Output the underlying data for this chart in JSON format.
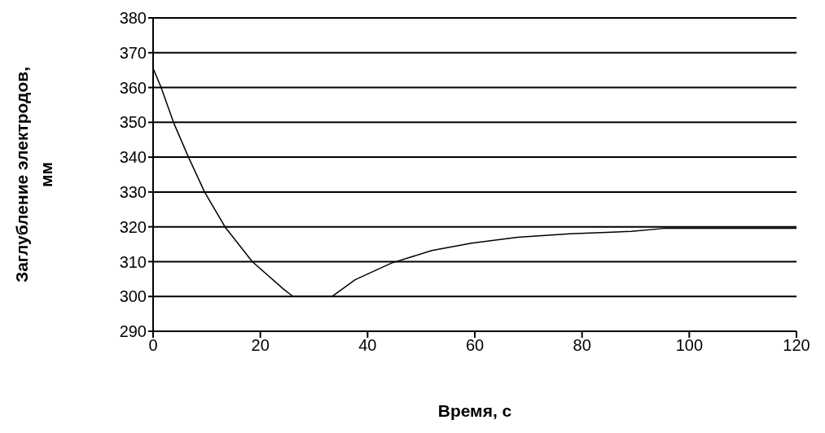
{
  "chart_data": {
    "type": "line",
    "xlabel": "Время, с",
    "ylabel": "Заглубление электродов, мм",
    "x": [
      0,
      1.5,
      3.8,
      6.6,
      9.6,
      13.4,
      18.5,
      24.4,
      26.1,
      33.4,
      37.7,
      44.5,
      52,
      59.4,
      68,
      77.7,
      89.2,
      95.7,
      120
    ],
    "series": [
      {
        "color": "#000000",
        "values": [
          365.5,
          360,
          350,
          340,
          330,
          320,
          310,
          302,
          300,
          300,
          304.8,
          309.6,
          313.2,
          315.3,
          317,
          318,
          318.7,
          319.6,
          319.6
        ]
      }
    ],
    "xlim": [
      0,
      120
    ],
    "xticks": [
      0,
      20,
      40,
      60,
      80,
      100,
      120
    ],
    "ylim": [
      290,
      380
    ],
    "yticks": [
      290,
      300,
      310,
      320,
      330,
      340,
      350,
      360,
      370,
      380
    ],
    "grid": "y",
    "legend": false
  }
}
